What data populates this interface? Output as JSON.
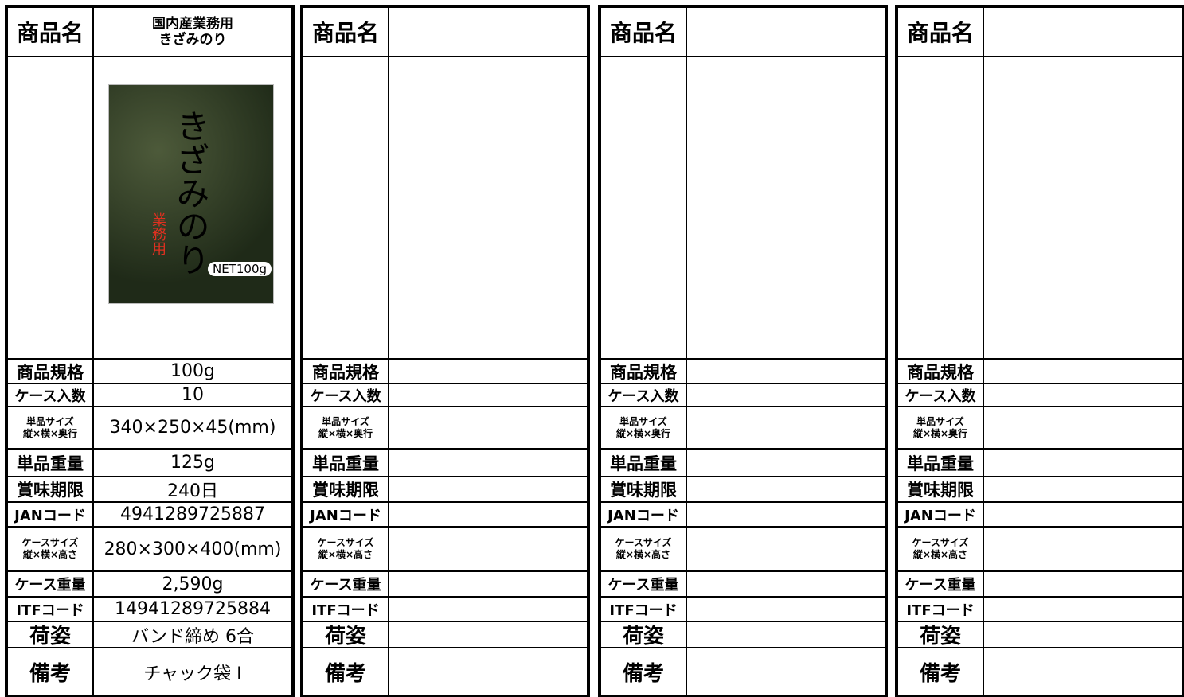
{
  "panels": [
    {
      "header": "商品名",
      "name": "国内産業務用\nきざみのり",
      "image": {
        "title": "きざみのり",
        "badge": "業務用",
        "net": "NET100g"
      },
      "rows": [
        {
          "label": "商品規格",
          "value": "100g"
        },
        {
          "label": "ケース入数",
          "value": "10"
        },
        {
          "label": "単品サイズ\n縦×横×奥行",
          "value": "340×250×45(mm)"
        },
        {
          "label": "単品重量",
          "value": "125g"
        },
        {
          "label": "賞味期限",
          "value": "240日"
        },
        {
          "label": "JANコード",
          "value": "4941289725887"
        },
        {
          "label": "ケースサイズ\n縦×横×高さ",
          "value": "280×300×400(mm)"
        },
        {
          "label": "ケース重量",
          "value": "2,590g"
        },
        {
          "label": "ITFコード",
          "value": "14941289725884"
        },
        {
          "label": "荷姿",
          "value": "バンド締め 6合"
        },
        {
          "label": "備考",
          "value": "チャック袋 Ⅰ"
        }
      ]
    },
    {
      "header": "商品名",
      "rows": [
        {
          "label": "商品規格"
        },
        {
          "label": "ケース入数"
        },
        {
          "label": "単品サイズ\n縦×横×奥行"
        },
        {
          "label": "単品重量"
        },
        {
          "label": "賞味期限"
        },
        {
          "label": "JANコード"
        },
        {
          "label": "ケースサイズ\n縦×横×高さ"
        },
        {
          "label": "ケース重量"
        },
        {
          "label": "ITFコード"
        },
        {
          "label": "荷姿"
        },
        {
          "label": "備考"
        }
      ]
    },
    {
      "header": "商品名",
      "rows": [
        {
          "label": "商品規格"
        },
        {
          "label": "ケース入数"
        },
        {
          "label": "単品サイズ\n縦×横×奥行"
        },
        {
          "label": "単品重量"
        },
        {
          "label": "賞味期限"
        },
        {
          "label": "JANコード"
        },
        {
          "label": "ケースサイズ\n縦×横×高さ"
        },
        {
          "label": "ケース重量"
        },
        {
          "label": "ITFコード"
        },
        {
          "label": "荷姿"
        },
        {
          "label": "備考"
        }
      ]
    },
    {
      "header": "商品名",
      "rows": [
        {
          "label": "商品規格"
        },
        {
          "label": "ケース入数"
        },
        {
          "label": "単品サイズ\n縦×横×奥行"
        },
        {
          "label": "単品重量"
        },
        {
          "label": "賞味期限"
        },
        {
          "label": "JANコード"
        },
        {
          "label": "ケースサイズ\n縦×横×高さ"
        },
        {
          "label": "ケース重量"
        },
        {
          "label": "ITFコード"
        },
        {
          "label": "荷姿"
        },
        {
          "label": "備考"
        }
      ]
    }
  ]
}
